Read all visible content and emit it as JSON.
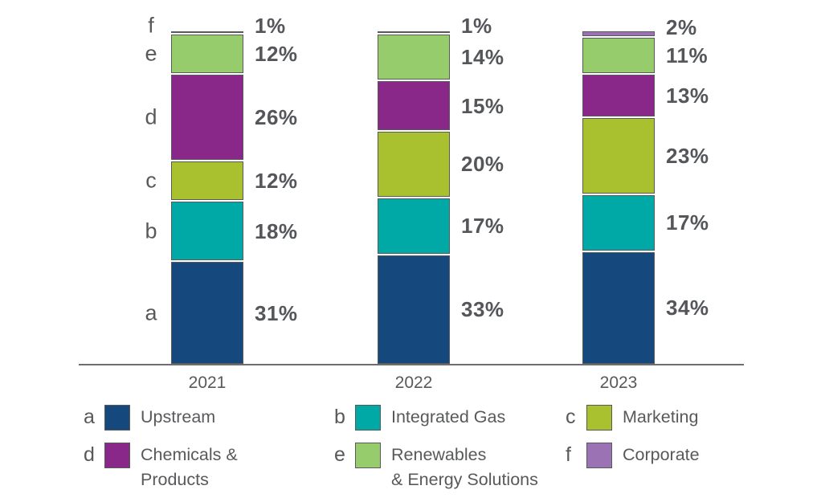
{
  "chart_data": {
    "type": "bar",
    "variant": "stacked-100-percent-column",
    "title": "",
    "categories": [
      "2021",
      "2022",
      "2023"
    ],
    "series": [
      {
        "key": "a",
        "name": "Upstream",
        "color": "#15497E",
        "values": [
          31,
          33,
          34
        ]
      },
      {
        "key": "b",
        "name": "Integrated Gas",
        "color": "#00A9A6",
        "values": [
          18,
          17,
          17
        ]
      },
      {
        "key": "c",
        "name": "Marketing",
        "color": "#A9C02F",
        "values": [
          12,
          20,
          23
        ]
      },
      {
        "key": "d",
        "name": "Chemicals & Products",
        "color": "#8A2889",
        "values": [
          26,
          15,
          13
        ]
      },
      {
        "key": "e",
        "name": "Renewables & Energy Solutions",
        "color": "#97CC6D",
        "values": [
          12,
          14,
          11
        ]
      },
      {
        "key": "f",
        "name": "Corporate",
        "color": "#9B72B4",
        "values": [
          1,
          1,
          2
        ]
      }
    ],
    "value_suffix": "%",
    "ylim": [
      0,
      100
    ],
    "grid": false,
    "legend_position": "bottom",
    "axis_color": "#6D6E71",
    "label_color": "#58595B",
    "value_label_color": "#54565A",
    "segment_border_color": "#58595B",
    "background": "#FFFFFF"
  },
  "legend": {
    "items": [
      {
        "key": "a",
        "label": "Upstream",
        "color": "#15497E"
      },
      {
        "key": "b",
        "label": "Integrated Gas",
        "color": "#00A9A6"
      },
      {
        "key": "c",
        "label": "Marketing",
        "color": "#A9C02F"
      },
      {
        "key": "d",
        "label": "Chemicals &\nProducts",
        "color": "#8A2889"
      },
      {
        "key": "e",
        "label": "Renewables\n& Energy Solutions",
        "color": "#97CC6D"
      },
      {
        "key": "f",
        "label": "Corporate",
        "color": "#9B72B4"
      }
    ]
  }
}
